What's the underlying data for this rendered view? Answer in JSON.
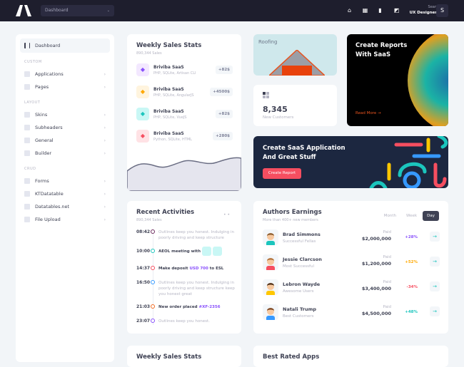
{
  "header": {
    "logo": "logo-mark",
    "dropdown": "Dashboard",
    "user_name": "Sean",
    "user_role": "UX Designer",
    "avatar_letter": "S",
    "icons": [
      "robot-icon",
      "grid-icon",
      "chart-bar-icon",
      "layers-icon"
    ]
  },
  "sidebar": {
    "active": "Dashboard",
    "sections": [
      {
        "title": "CUSTOM",
        "items": [
          "Applications",
          "Pages"
        ]
      },
      {
        "title": "LAYOUT",
        "items": [
          "Skins",
          "Subheaders",
          "General",
          "Builder"
        ]
      },
      {
        "title": "CRUD",
        "items": [
          "Forms",
          "KTDatatable",
          "Datatables.net",
          "File Upload"
        ]
      }
    ]
  },
  "weekly": {
    "title": "Weekly Sales Stats",
    "subtitle": "890,344 Sales",
    "items": [
      {
        "name": "Briviba SaaS",
        "desc": "PHP, SQLite, Artisan CLI",
        "value": "+82$",
        "color": "#f3e8ff",
        "fg": "#8950fc"
      },
      {
        "name": "Briviba SaaS",
        "desc": "PHP, SQLite, AngularJS",
        "value": "+4500$",
        "color": "#fff4de",
        "fg": "#ffa800"
      },
      {
        "name": "Briviba SaaS",
        "desc": "PHP, SQLite, VueJS",
        "value": "+82$",
        "color": "#c9f7f5",
        "fg": "#1bc5bd"
      },
      {
        "name": "Briviba SaaS",
        "desc": "Python, SQLite, HTML",
        "value": "+280$",
        "color": "#ffe2e5",
        "fg": "#f64e60"
      }
    ]
  },
  "roofing": {
    "title": "Roofing"
  },
  "customers": {
    "value": "8,345",
    "label": "New Customers"
  },
  "reports": {
    "title1": "Create Reports",
    "title2": "With SaaS",
    "link": "Read More"
  },
  "banner": {
    "title1": "Create SaaS Application",
    "title2": "And Great Stuff",
    "button": "Create Report"
  },
  "activities": {
    "title": "Recent Activities",
    "subtitle": "890,344 Sales",
    "items": [
      {
        "time": "08:42",
        "text": "Outlines keep you honest. Indulging in poorly driving and keep structure",
        "bold": false,
        "color": "#6c2b5e"
      },
      {
        "time": "10:00",
        "text": "AEOL meeting with",
        "bold": true,
        "color": "#1bc5bd"
      },
      {
        "time": "14:37",
        "text": "Make deposit",
        "link": "USD 700",
        "after": "to ESL",
        "bold": true,
        "color": "#f64e60"
      },
      {
        "time": "16:50",
        "text": "Outlines keep you honest. Indulging in poorly driving and keep structure keep you honest great",
        "bold": false,
        "color": "#3699ff"
      },
      {
        "time": "21:03",
        "text": "New order placed",
        "link": "#XF-2356",
        "after": "",
        "bold": true,
        "color": "#f26b22"
      },
      {
        "time": "23:07",
        "text": "Outlines keep you honest.",
        "bold": false,
        "color": "#8950fc"
      }
    ]
  },
  "authors": {
    "title": "Authors Earnings",
    "subtitle": "More than 400+ new members",
    "tabs": [
      "Month",
      "Week",
      "Day"
    ],
    "active_tab": "Day",
    "items": [
      {
        "name": "Brad Simmons",
        "desc": "Successful Fellas",
        "paid_label": "Paid",
        "amount": "$2,000,000",
        "pct": "+28%",
        "pct_color": "#8950fc",
        "shirt": "#1bc5bd",
        "hair": "#8a5a2b"
      },
      {
        "name": "Jessie Clarcson",
        "desc": "Most Successful",
        "paid_label": "Paid",
        "amount": "$1,200,000",
        "pct": "+52%",
        "pct_color": "#ffa800",
        "shirt": "#f64e60",
        "hair": "#b0713a"
      },
      {
        "name": "Lebron Wayde",
        "desc": "Awesome Users",
        "paid_label": "Paid",
        "amount": "$3,400,000",
        "pct": "-34%",
        "pct_color": "#f64e60",
        "shirt": "#ffc700",
        "hair": "#4a2a12"
      },
      {
        "name": "Natali Trump",
        "desc": "Best Customers",
        "paid_label": "Paid",
        "amount": "$4,500,000",
        "pct": "+48%",
        "pct_color": "#1bc5bd",
        "shirt": "#3699ff",
        "hair": "#7a4420"
      }
    ]
  },
  "bottom": {
    "left_title": "Weekly Sales Stats",
    "right_title": "Best Rated Apps"
  }
}
